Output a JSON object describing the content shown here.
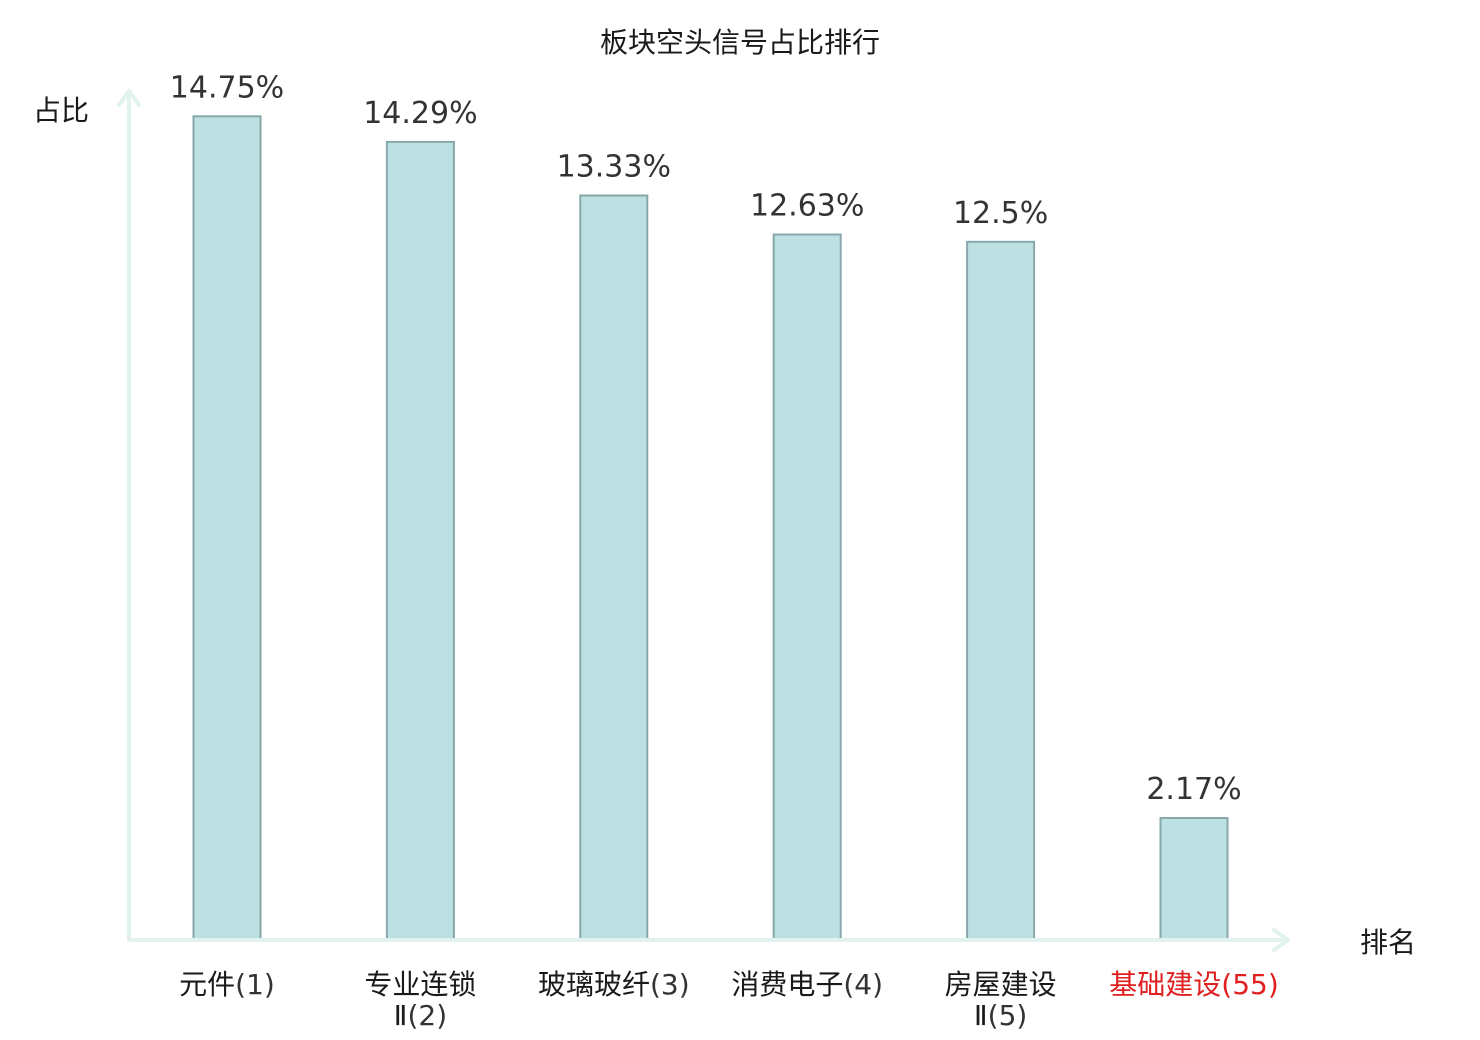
{
  "chart_data": {
    "type": "bar",
    "title": "板块空头信号占比排行",
    "ylabel": "占比",
    "xlabel": "排名",
    "ylim": [
      0,
      15.4
    ],
    "grid": false,
    "highlight_color": "#e02020",
    "bar_color": "#bde0e3",
    "bar_border_color": "#86a8aa",
    "axis_color": "#e2f2ef",
    "categories": [
      {
        "lines": [
          "元件"
        ],
        "rank": "(1)",
        "highlight": false
      },
      {
        "lines": [
          "专业连锁",
          "Ⅱ"
        ],
        "rank": "(2)",
        "highlight": false
      },
      {
        "lines": [
          "玻璃玻纤"
        ],
        "rank": "(3)",
        "highlight": false
      },
      {
        "lines": [
          "消费电子"
        ],
        "rank": "(4)",
        "highlight": false
      },
      {
        "lines": [
          "房屋建设",
          "Ⅱ"
        ],
        "rank": "(5)",
        "highlight": false
      },
      {
        "lines": [
          "基础建设"
        ],
        "rank": "(55)",
        "highlight": true
      }
    ],
    "values": [
      14.75,
      14.29,
      13.33,
      12.63,
      12.5,
      2.17
    ],
    "value_labels": [
      "14.75%",
      "14.29%",
      "13.33%",
      "12.63%",
      "12.5%",
      "2.17%"
    ]
  }
}
